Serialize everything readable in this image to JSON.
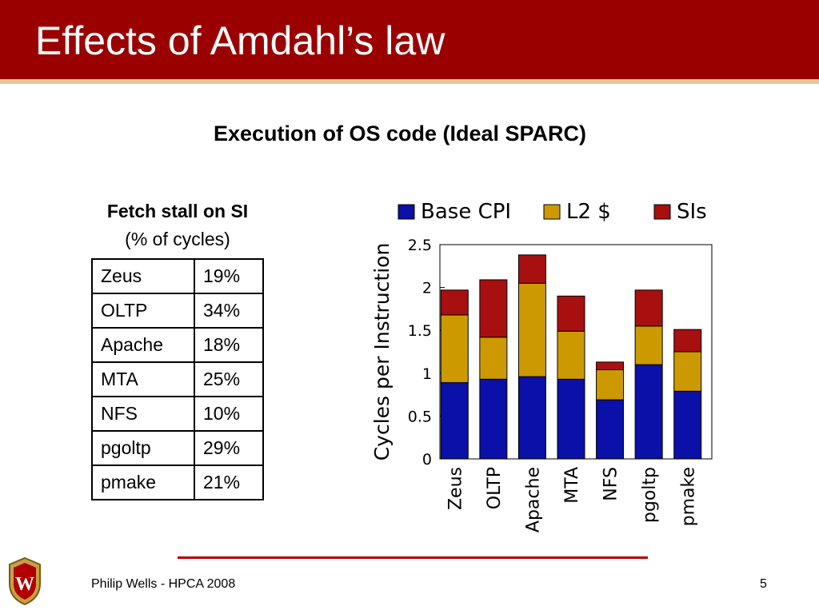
{
  "slide": {
    "title": "Effects of Amdahl’s law",
    "subtitle": "Execution of OS code (Ideal SPARC)",
    "footer": "Philip Wells - HPCA 2008",
    "page_number": "5",
    "logo_letter": "W"
  },
  "table": {
    "heading": "Fetch stall on SI",
    "subheading": "(% of cycles)",
    "rows": [
      {
        "name": "Zeus",
        "value": "19%"
      },
      {
        "name": "OLTP",
        "value": "34%"
      },
      {
        "name": "Apache",
        "value": "18%"
      },
      {
        "name": "MTA",
        "value": "25%"
      },
      {
        "name": "NFS",
        "value": "10%"
      },
      {
        "name": "pgoltp",
        "value": "29%"
      },
      {
        "name": "pmake",
        "value": "21%"
      }
    ]
  },
  "colors": {
    "title_bar": "#9b0000",
    "base_cpi": "#0a10a8",
    "l2": "#cc9a00",
    "sis": "#a80f0f"
  },
  "chart_data": {
    "type": "bar",
    "stacked": true,
    "categories": [
      "Zeus",
      "OLTP",
      "Apache",
      "MTA",
      "NFS",
      "pgoltp",
      "pmake"
    ],
    "series": [
      {
        "name": "Base CPI",
        "color": "#0a10a8",
        "values": [
          0.89,
          0.93,
          0.96,
          0.93,
          0.69,
          1.1,
          0.79
        ]
      },
      {
        "name": "L2 $",
        "color": "#cc9a00",
        "values": [
          0.79,
          0.49,
          1.09,
          0.56,
          0.35,
          0.45,
          0.46
        ]
      },
      {
        "name": "SIs",
        "color": "#a80f0f",
        "values": [
          0.29,
          0.67,
          0.33,
          0.41,
          0.09,
          0.42,
          0.26
        ]
      }
    ],
    "ylabel": "Cycles per Instruction",
    "ylim": [
      0,
      2.5
    ],
    "yticks": [
      "0",
      "0.5",
      "1",
      "1.5",
      "2",
      "2.5"
    ],
    "legend_position": "top",
    "grid": false
  }
}
